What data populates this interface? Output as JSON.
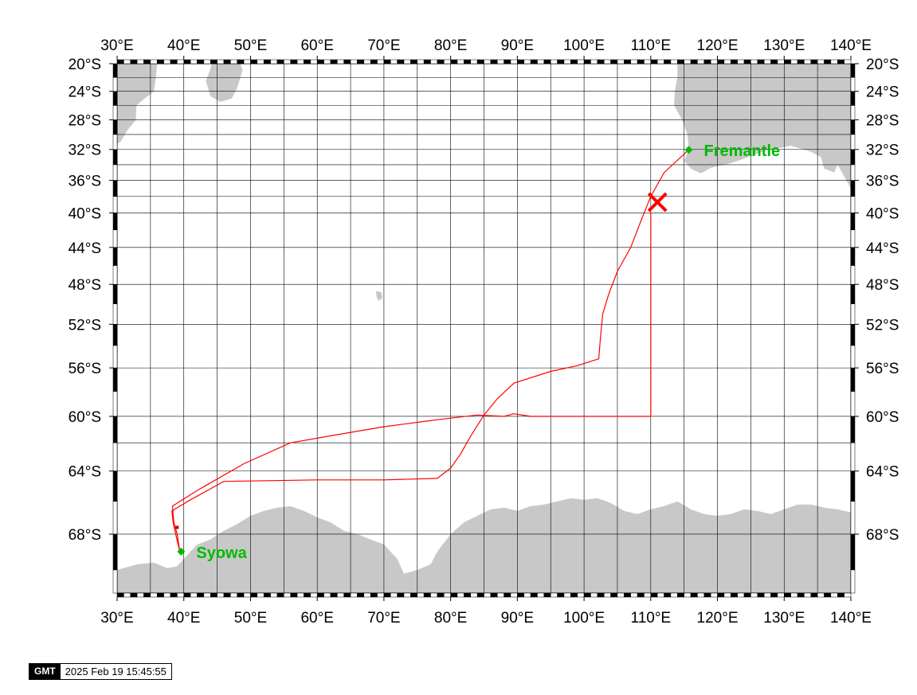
{
  "map": {
    "projection": "mercator",
    "lon_range": [
      30,
      140
    ],
    "lat_range": [
      -71.2,
      -20
    ],
    "lon_ticks": [
      {
        "value": 30,
        "label": "30°E"
      },
      {
        "value": 40,
        "label": "40°E"
      },
      {
        "value": 50,
        "label": "50°E"
      },
      {
        "value": 60,
        "label": "60°E"
      },
      {
        "value": 70,
        "label": "70°E"
      },
      {
        "value": 80,
        "label": "80°E"
      },
      {
        "value": 90,
        "label": "90°E"
      },
      {
        "value": 100,
        "label": "100°E"
      },
      {
        "value": 110,
        "label": "110°E"
      },
      {
        "value": 120,
        "label": "120°E"
      },
      {
        "value": 130,
        "label": "130°E"
      },
      {
        "value": 140,
        "label": "140°E"
      }
    ],
    "lat_ticks": [
      {
        "value": -20,
        "label": "20°S"
      },
      {
        "value": -24,
        "label": "24°S"
      },
      {
        "value": -28,
        "label": "28°S"
      },
      {
        "value": -32,
        "label": "32°S"
      },
      {
        "value": -36,
        "label": "36°S"
      },
      {
        "value": -40,
        "label": "40°S"
      },
      {
        "value": -44,
        "label": "44°S"
      },
      {
        "value": -48,
        "label": "48°S"
      },
      {
        "value": -52,
        "label": "52°S"
      },
      {
        "value": -56,
        "label": "56°S"
      },
      {
        "value": -60,
        "label": "60°S"
      },
      {
        "value": -64,
        "label": "64°S"
      },
      {
        "value": -68,
        "label": "68°S"
      }
    ],
    "grid_lon_step": 5,
    "grid_lat_lines": [
      -20,
      -22,
      -24,
      -26,
      -28,
      -30,
      -32,
      -34,
      -36,
      -38,
      -40,
      -44,
      -48,
      -52,
      -56,
      -60,
      -62,
      -64,
      -68
    ],
    "colors": {
      "land": "#c8c8c8",
      "track": "#ff0000",
      "station": "#00bb00",
      "grid": "#000000"
    },
    "stations": [
      {
        "name": "Fremantle",
        "lon": 115.7,
        "lat": -32.05
      },
      {
        "name": "Syowa",
        "lon": 39.6,
        "lat": -69.0
      }
    ],
    "current_position": {
      "lon": 111.0,
      "lat": -38.7,
      "marker": "x"
    },
    "track_segments": [
      [
        [
          115.7,
          -32.05
        ],
        [
          112,
          -35
        ],
        [
          110,
          -38
        ],
        [
          108.5,
          -41
        ],
        [
          107,
          -44
        ],
        [
          105,
          -46.6
        ],
        [
          103.7,
          -49
        ],
        [
          102.8,
          -51
        ],
        [
          102.5,
          -53
        ],
        [
          102.2,
          -55.2
        ],
        [
          99,
          -55.8
        ],
        [
          95,
          -56.3
        ],
        [
          89.5,
          -57.3
        ],
        [
          87,
          -58.6
        ],
        [
          85,
          -59.9
        ],
        [
          83,
          -61.5
        ],
        [
          81.5,
          -62.8
        ],
        [
          80,
          -63.8
        ],
        [
          78,
          -64.5
        ],
        [
          70,
          -64.6
        ],
        [
          60,
          -64.6
        ],
        [
          46,
          -64.7
        ],
        [
          41,
          -65.9
        ],
        [
          38.2,
          -66.6
        ],
        [
          38.4,
          -67.3
        ],
        [
          38.9,
          -68.2
        ],
        [
          39.4,
          -69.0
        ]
      ],
      [
        [
          39.4,
          -69.0
        ],
        [
          39.0,
          -68.0
        ],
        [
          38.5,
          -67.3
        ],
        [
          38.3,
          -66.3
        ],
        [
          42,
          -65.3
        ],
        [
          49,
          -63.5
        ],
        [
          56,
          -62.0
        ],
        [
          63,
          -61.4
        ],
        [
          70,
          -60.8
        ],
        [
          76,
          -60.4
        ],
        [
          79,
          -60.2
        ],
        [
          84,
          -59.9
        ],
        [
          88,
          -60.0
        ],
        [
          89.5,
          -59.8
        ],
        [
          92,
          -60.0
        ],
        [
          100,
          -60.0
        ],
        [
          110,
          -60.0
        ],
        [
          110,
          -50
        ],
        [
          110,
          -43
        ],
        [
          110,
          -40
        ]
      ]
    ],
    "land_polygons": [
      [
        [
          30,
          -20
        ],
        [
          36,
          -20
        ],
        [
          35.8,
          -22
        ],
        [
          35.5,
          -24
        ],
        [
          33.5,
          -25.5
        ],
        [
          32.9,
          -26
        ],
        [
          32.8,
          -28
        ],
        [
          31.5,
          -29.5
        ],
        [
          30.5,
          -31
        ],
        [
          30,
          -31.2
        ]
      ],
      [
        [
          44.2,
          -20
        ],
        [
          48.5,
          -20
        ],
        [
          48.8,
          -21
        ],
        [
          48,
          -23.5
        ],
        [
          47.2,
          -25
        ],
        [
          45.5,
          -25.5
        ],
        [
          44,
          -24.7
        ],
        [
          43.3,
          -22.5
        ],
        [
          43.9,
          -21
        ]
      ],
      [
        [
          114,
          -20
        ],
        [
          140,
          -20
        ],
        [
          140,
          -37
        ],
        [
          139,
          -35.5
        ],
        [
          138,
          -34
        ],
        [
          137.5,
          -35
        ],
        [
          136,
          -34.5
        ],
        [
          135.5,
          -33
        ],
        [
          134,
          -32.3
        ],
        [
          131,
          -31.5
        ],
        [
          127,
          -32.2
        ],
        [
          124,
          -33.2
        ],
        [
          122,
          -33.8
        ],
        [
          119,
          -34.4
        ],
        [
          117.5,
          -35.1
        ],
        [
          116,
          -34.5
        ],
        [
          115,
          -33.5
        ],
        [
          115.7,
          -32
        ],
        [
          115.5,
          -30
        ],
        [
          114.7,
          -28
        ],
        [
          113.5,
          -26
        ],
        [
          113.6,
          -24
        ],
        [
          114,
          -22
        ]
      ],
      [
        [
          30,
          -71.2
        ],
        [
          30,
          -70.0
        ],
        [
          33,
          -69.7
        ],
        [
          35.5,
          -69.6
        ],
        [
          37.5,
          -69.9
        ],
        [
          39.0,
          -69.8
        ],
        [
          40.5,
          -69.2
        ],
        [
          42,
          -68.6
        ],
        [
          44,
          -68.3
        ],
        [
          46,
          -67.8
        ],
        [
          48,
          -67.4
        ],
        [
          50,
          -66.9
        ],
        [
          52,
          -66.6
        ],
        [
          54,
          -66.4
        ],
        [
          56,
          -66.3
        ],
        [
          58,
          -66.6
        ],
        [
          60,
          -67.0
        ],
        [
          62,
          -67.3
        ],
        [
          64,
          -67.8
        ],
        [
          66,
          -68.0
        ],
        [
          68,
          -68.3
        ],
        [
          70,
          -68.6
        ],
        [
          72,
          -69.4
        ],
        [
          73,
          -70.2
        ],
        [
          75,
          -70.0
        ],
        [
          77,
          -69.7
        ],
        [
          78,
          -69.0
        ],
        [
          80,
          -68.0
        ],
        [
          82,
          -67.3
        ],
        [
          84,
          -66.9
        ],
        [
          86,
          -66.5
        ],
        [
          88,
          -66.4
        ],
        [
          90,
          -66.6
        ],
        [
          92,
          -66.3
        ],
        [
          94,
          -66.2
        ],
        [
          96,
          -66.0
        ],
        [
          98,
          -65.8
        ],
        [
          100,
          -65.9
        ],
        [
          102,
          -65.8
        ],
        [
          104,
          -66.1
        ],
        [
          106,
          -66.6
        ],
        [
          108,
          -66.8
        ],
        [
          110,
          -66.5
        ],
        [
          112,
          -66.3
        ],
        [
          114,
          -66.0
        ],
        [
          116,
          -66.5
        ],
        [
          118,
          -66.8
        ],
        [
          120,
          -66.9
        ],
        [
          122,
          -66.8
        ],
        [
          124,
          -66.5
        ],
        [
          126,
          -66.6
        ],
        [
          128,
          -66.8
        ],
        [
          130,
          -66.5
        ],
        [
          132,
          -66.2
        ],
        [
          134,
          -66.2
        ],
        [
          136,
          -66.4
        ],
        [
          138,
          -66.5
        ],
        [
          140,
          -66.7
        ],
        [
          140,
          -71.2
        ]
      ],
      [
        [
          68.8,
          -48.7
        ],
        [
          69.6,
          -48.8
        ],
        [
          69.8,
          -49.4
        ],
        [
          69.2,
          -49.7
        ],
        [
          68.9,
          -49.3
        ]
      ]
    ]
  },
  "stamp": {
    "logo": "GMT",
    "timestamp": "2025 Feb 19 15:45:55"
  }
}
